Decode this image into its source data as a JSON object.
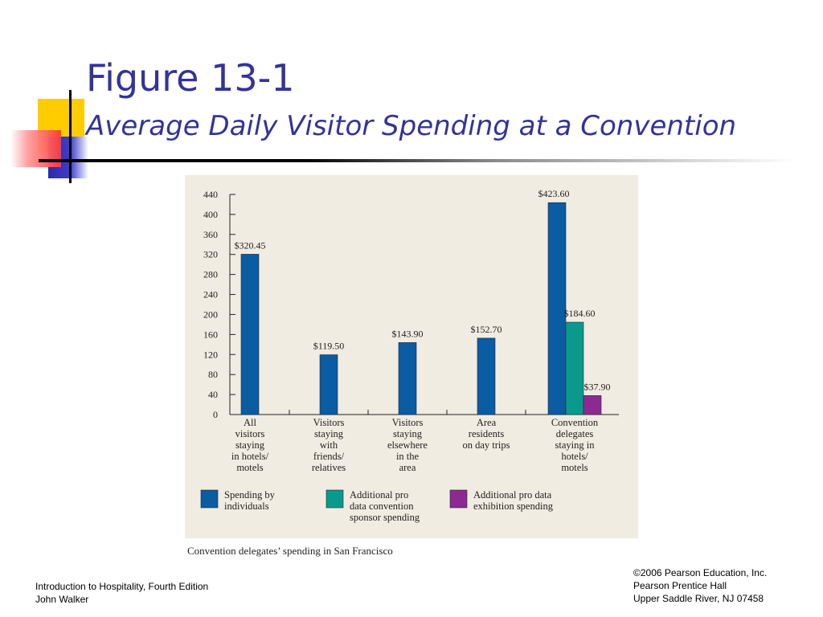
{
  "slide": {
    "title": "Figure 13-1",
    "subtitle": "Average Daily Visitor Spending at a Convention"
  },
  "caption": "Convention delegates’ spending in San Francisco",
  "footer": {
    "left": [
      "Introduction to Hospitality, Fourth Edition",
      "John Walker"
    ],
    "right": [
      "©2006 Pearson Education, Inc.",
      "Pearson Prentice Hall",
      "Upper Saddle River, NJ 07458"
    ]
  },
  "colors": {
    "title": "#333399",
    "panel": "#f1ece1",
    "individuals": "#0a5ca3",
    "sponsor": "#0a9a8c",
    "exhibition": "#8c2a92"
  },
  "chart_data": {
    "type": "bar",
    "title": "",
    "xlabel": "",
    "ylabel": "",
    "ylim": [
      0,
      440
    ],
    "yticks": [
      0,
      40,
      80,
      120,
      160,
      200,
      240,
      280,
      320,
      360,
      400,
      440
    ],
    "grid": false,
    "legend_position": "bottom",
    "categories": [
      [
        "All",
        "visitors",
        "staying",
        "in hotels/",
        "motels"
      ],
      [
        "Visitors",
        "staying",
        "with",
        "friends/",
        "relatives"
      ],
      [
        "Visitors",
        "staying",
        "elsewhere",
        "in the",
        "area"
      ],
      [
        "Area",
        "residents",
        "on day trips"
      ],
      [
        "Convention",
        "delegates",
        "staying in",
        "hotels/",
        "motels"
      ]
    ],
    "series": [
      {
        "name": [
          "Spending by",
          "individuals"
        ],
        "color": "#0a5ca3",
        "values": [
          320.45,
          119.5,
          143.9,
          152.7,
          423.6
        ],
        "labels": [
          "$320.45",
          "$119.50",
          "$143.90",
          "$152.70",
          "$423.60"
        ]
      },
      {
        "name": [
          "Additional pro",
          "data convention",
          "sponsor spending"
        ],
        "color": "#0a9a8c",
        "values": [
          null,
          null,
          null,
          null,
          184.6
        ],
        "labels": [
          null,
          null,
          null,
          null,
          "$184.60"
        ]
      },
      {
        "name": [
          "Additional pro data",
          "exhibition spending"
        ],
        "color": "#8c2a92",
        "values": [
          null,
          null,
          null,
          null,
          37.9
        ],
        "labels": [
          null,
          null,
          null,
          null,
          "$37.90"
        ]
      }
    ]
  }
}
